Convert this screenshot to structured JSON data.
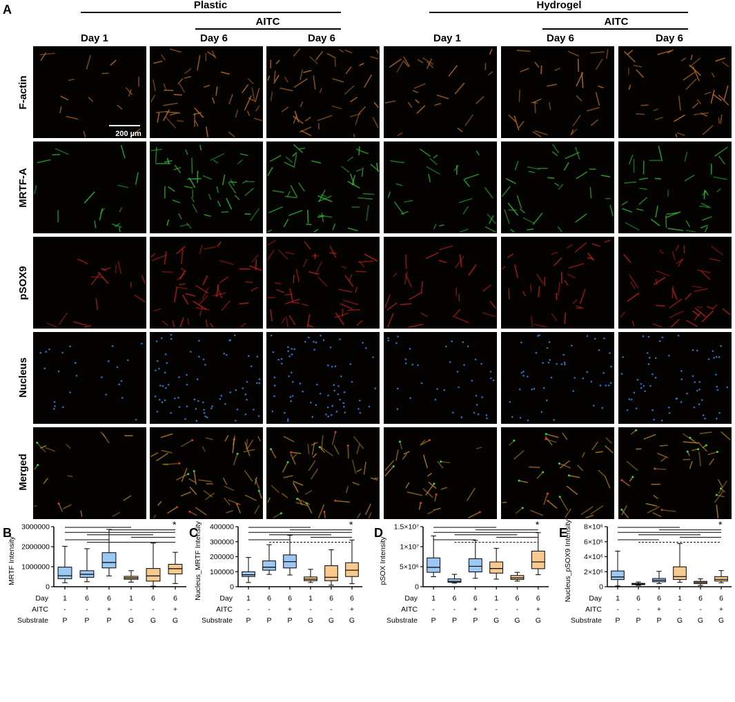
{
  "panel_labels": [
    "A",
    "B",
    "C",
    "D",
    "E"
  ],
  "groups": [
    {
      "name": "Plastic",
      "sub": "AITC"
    },
    {
      "name": "Hydrogel",
      "sub": "AITC"
    }
  ],
  "columns": [
    "Day 1",
    "Day 6",
    "Day 6",
    "Day 1",
    "Day 6",
    "Day 6"
  ],
  "rows": [
    "F-actin",
    "MRTF-A",
    "pSOX9",
    "Nucleus",
    "Merged"
  ],
  "scale_bar": "200 µm",
  "micrograph_colors": {
    "F-actin": "#c8782a",
    "MRTF-A": "#33c23a",
    "pSOX9": "#c8201c",
    "Nucleus": "#2e7de0",
    "Merged": "#c08a2c"
  },
  "box_colors": {
    "plastic": "#9ec8f4",
    "hydrogel": "#f8c98c"
  },
  "factor_table": {
    "row_labels": [
      "Day",
      "AITC",
      "Substrate"
    ],
    "day": [
      "1",
      "6",
      "6",
      "1",
      "6",
      "6"
    ],
    "aitc": [
      "-",
      "-",
      "+",
      "-",
      "-",
      "+"
    ],
    "substrate": [
      "P",
      "P",
      "P",
      "G",
      "G",
      "G"
    ]
  },
  "chart_data": [
    {
      "panel": "B",
      "type": "box",
      "ylabel": "MRTF Intensity",
      "yticks": [
        "0",
        "1000000",
        "2000000",
        "3000000"
      ],
      "ylim": [
        0,
        3000000
      ],
      "significance": "*",
      "series": [
        {
          "group": 1,
          "min": 200000,
          "q1": 400000,
          "median": 550000,
          "q3": 980000,
          "max": 2020000
        },
        {
          "group": 2,
          "min": 250000,
          "q1": 470000,
          "median": 620000,
          "q3": 800000,
          "max": 1900000
        },
        {
          "group": 3,
          "min": 540000,
          "q1": 940000,
          "median": 1210000,
          "q3": 1700000,
          "max": 2860000
        },
        {
          "group": 4,
          "min": 230000,
          "q1": 370000,
          "median": 440000,
          "q3": 520000,
          "max": 800000
        },
        {
          "group": 5,
          "min": 30000,
          "q1": 280000,
          "median": 540000,
          "q3": 910000,
          "max": 2180000
        },
        {
          "group": 6,
          "min": 160000,
          "q1": 640000,
          "median": 900000,
          "q3": 1120000,
          "max": 1720000
        }
      ]
    },
    {
      "panel": "C",
      "type": "box",
      "ylabel": "Nucleus_MRTF Intensity",
      "yticks": [
        "0",
        "100000",
        "200000",
        "300000",
        "400000"
      ],
      "ylim": [
        0,
        400000
      ],
      "significance": "*",
      "series": [
        {
          "group": 1,
          "min": 28000,
          "q1": 68000,
          "median": 80000,
          "q3": 100000,
          "max": 195000
        },
        {
          "group": 2,
          "min": 82000,
          "q1": 110000,
          "median": 130000,
          "q3": 172000,
          "max": 280000
        },
        {
          "group": 3,
          "min": 78000,
          "q1": 125000,
          "median": 167000,
          "q3": 212000,
          "max": 343000
        },
        {
          "group": 4,
          "min": 28000,
          "q1": 40000,
          "median": 50000,
          "q3": 65000,
          "max": 116000
        },
        {
          "group": 5,
          "min": 10000,
          "q1": 40000,
          "median": 63000,
          "q3": 140000,
          "max": 246000
        },
        {
          "group": 6,
          "min": 20000,
          "q1": 68000,
          "median": 110000,
          "q3": 160000,
          "max": 311000
        }
      ]
    },
    {
      "panel": "D",
      "type": "box",
      "ylabel": "pSOX Intensity",
      "yticks": [
        "0",
        "5×10⁶",
        "1×10⁷",
        "1.5×10⁷"
      ],
      "ylim": [
        0,
        15000000
      ],
      "significance": "*",
      "series": [
        {
          "group": 1,
          "min": 2500000,
          "q1": 3600000,
          "median": 4850000,
          "q3": 7200000,
          "max": 12700000
        },
        {
          "group": 2,
          "min": 900000,
          "q1": 1100000,
          "median": 1350000,
          "q3": 1950000,
          "max": 3100000
        },
        {
          "group": 3,
          "min": 2100000,
          "q1": 3700000,
          "median": 5100000,
          "q3": 7000000,
          "max": 11600000
        },
        {
          "group": 4,
          "min": 1900000,
          "q1": 3400000,
          "median": 4550000,
          "q3": 6200000,
          "max": 9600000
        },
        {
          "group": 5,
          "min": 1400000,
          "q1": 1800000,
          "median": 2200000,
          "q3": 2800000,
          "max": 3600000
        },
        {
          "group": 6,
          "min": 3000000,
          "q1": 4500000,
          "median": 6200000,
          "q3": 8900000,
          "max": 13500000
        }
      ]
    },
    {
      "panel": "E",
      "type": "box",
      "ylabel": "Nucleus_pSOX9 Intensity",
      "yticks": [
        "0",
        "2×10⁶",
        "4×10⁶",
        "6×10⁶",
        "8×10⁶"
      ],
      "ylim": [
        0,
        8000000
      ],
      "significance": "*",
      "series": [
        {
          "group": 1,
          "min": 100000,
          "q1": 950000,
          "median": 1300000,
          "q3": 2100000,
          "max": 4750000
        },
        {
          "group": 2,
          "min": 180000,
          "q1": 280000,
          "median": 350000,
          "q3": 450000,
          "max": 630000
        },
        {
          "group": 3,
          "min": 420000,
          "q1": 650000,
          "median": 850000,
          "q3": 1100000,
          "max": 2050000
        },
        {
          "group": 4,
          "min": 580000,
          "q1": 960000,
          "median": 1350000,
          "q3": 2650000,
          "max": 5750000
        },
        {
          "group": 5,
          "min": 180000,
          "q1": 420000,
          "median": 570000,
          "q3": 720000,
          "max": 1050000
        },
        {
          "group": 6,
          "min": 530000,
          "q1": 760000,
          "median": 970000,
          "q3": 1350000,
          "max": 2150000
        }
      ]
    }
  ]
}
